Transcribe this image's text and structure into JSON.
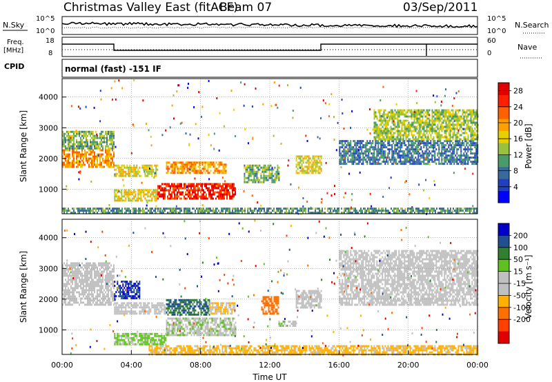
{
  "header": {
    "station": "Christmas Valley East (fitACF)",
    "beam": "Beam 07",
    "date": "03/Sep/2011"
  },
  "strips": {
    "nsky_label": "N.Sky",
    "nsky_ticks": [
      "10^5",
      "10^0"
    ],
    "nsearch_label": "N.Search",
    "nsearch_ticks": [
      "10^5",
      "10^0"
    ],
    "freq_label": "Freq.",
    "freq_unit": "[MHz]",
    "freq_ticks": [
      "18",
      "8"
    ],
    "nave_label": "Nave",
    "nave_ticks": [
      "60",
      "0"
    ],
    "cpid_label": "CPID",
    "cpid_text": "normal (fast) -151 IF"
  },
  "colors": {
    "power_scale": [
      "#0000ff",
      "#2040c0",
      "#3a6a9a",
      "#4a9a6a",
      "#9ac040",
      "#e8d000",
      "#ffa000",
      "#ff6000",
      "#ff2000",
      "#e00000"
    ],
    "velocity_scale": [
      "#0000c8",
      "#205090",
      "#308030",
      "#60c020",
      "#c0c0c0",
      "#c0c0c0",
      "#ffb000",
      "#ff7000",
      "#ff4000",
      "#e00000"
    ]
  },
  "chart_data": [
    {
      "type": "heatmap",
      "ylabel": "Slant Range [km]",
      "ylim": [
        200,
        4600
      ],
      "y_ticks": [
        1000,
        2000,
        3000,
        4000
      ],
      "xlim": [
        "00:00",
        "24:00"
      ],
      "x_ticks": [],
      "colorbar": {
        "label": "Power [dB]",
        "ticks": [
          4,
          8,
          12,
          16,
          20,
          24,
          28
        ],
        "range": [
          0,
          30
        ]
      },
      "features": [
        {
          "t_start": 0.0,
          "t_end": 3.0,
          "range_min": 1700,
          "range_max": 2300,
          "value": 20
        },
        {
          "t_start": 0.0,
          "t_end": 3.0,
          "range_min": 2300,
          "range_max": 2900,
          "value": 12
        },
        {
          "t_start": 3.0,
          "t_end": 5.5,
          "range_min": 1400,
          "range_max": 1800,
          "value": 16
        },
        {
          "t_start": 3.0,
          "t_end": 5.5,
          "range_min": 600,
          "range_max": 1000,
          "value": 16
        },
        {
          "t_start": 5.5,
          "t_end": 10.0,
          "range_min": 700,
          "range_max": 1200,
          "value": 26
        },
        {
          "t_start": 6.0,
          "t_end": 9.5,
          "range_min": 1500,
          "range_max": 1900,
          "value": 20
        },
        {
          "t_start": 10.5,
          "t_end": 12.5,
          "range_min": 1200,
          "range_max": 1800,
          "value": 12
        },
        {
          "t_start": 13.5,
          "t_end": 15.0,
          "range_min": 1500,
          "range_max": 2100,
          "value": 16
        },
        {
          "t_start": 16.0,
          "t_end": 24.0,
          "range_min": 1800,
          "range_max": 2600,
          "value": 8
        },
        {
          "t_start": 18.0,
          "t_end": 24.0,
          "range_min": 2600,
          "range_max": 3600,
          "value": 14
        },
        {
          "t_start": 0.0,
          "t_end": 24.0,
          "range_min": 200,
          "range_max": 400,
          "value": 10
        }
      ]
    },
    {
      "type": "heatmap",
      "ylabel": "Slant Range [km]",
      "ylim": [
        200,
        4600
      ],
      "y_ticks": [
        1000,
        2000,
        3000,
        4000
      ],
      "xlabel": "Time UT",
      "xlim": [
        "00:00",
        "24:00"
      ],
      "x_ticks": [
        "00:00",
        "04:00",
        "08:00",
        "12:00",
        "16:00",
        "20:00",
        "00:00"
      ],
      "colorbar": {
        "label": "Velocity [m s⁻¹]",
        "ticks": [
          200,
          100,
          50,
          15,
          -15,
          -50,
          -100,
          -200
        ],
        "range": [
          -250,
          250
        ]
      },
      "features": [
        {
          "t_start": 0.0,
          "t_end": 3.0,
          "range_min": 1800,
          "range_max": 3200,
          "value": 0
        },
        {
          "t_start": 3.0,
          "t_end": 4.5,
          "range_min": 2000,
          "range_max": 2600,
          "value": 200
        },
        {
          "t_start": 3.0,
          "t_end": 6.0,
          "range_min": 1500,
          "range_max": 1900,
          "value": 0
        },
        {
          "t_start": 3.0,
          "t_end": 6.0,
          "range_min": 500,
          "range_max": 900,
          "value": 60
        },
        {
          "t_start": 6.0,
          "t_end": 8.5,
          "range_min": 1500,
          "range_max": 2000,
          "value": 150
        },
        {
          "t_start": 8.5,
          "t_end": 10.0,
          "range_min": 1500,
          "range_max": 1900,
          "value": -50
        },
        {
          "t_start": 6.0,
          "t_end": 10.0,
          "range_min": 800,
          "range_max": 1400,
          "value": 40
        },
        {
          "t_start": 11.5,
          "t_end": 12.5,
          "range_min": 1500,
          "range_max": 2100,
          "value": -120
        },
        {
          "t_start": 12.5,
          "t_end": 13.5,
          "range_min": 1100,
          "range_max": 1300,
          "value": 40
        },
        {
          "t_start": 13.5,
          "t_end": 15.0,
          "range_min": 1700,
          "range_max": 2300,
          "value": 0
        },
        {
          "t_start": 16.0,
          "t_end": 24.0,
          "range_min": 1800,
          "range_max": 3600,
          "value": 0
        },
        {
          "t_start": 5.0,
          "t_end": 24.0,
          "range_min": 200,
          "range_max": 500,
          "value": -60
        }
      ]
    }
  ]
}
